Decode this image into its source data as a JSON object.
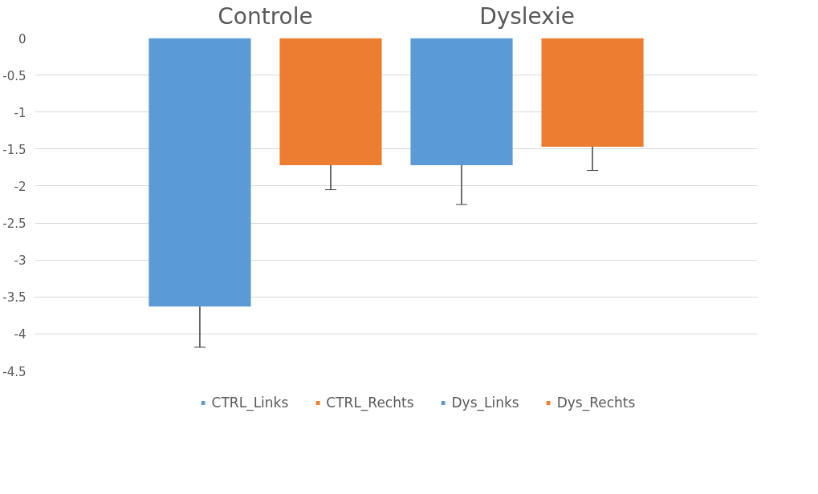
{
  "chart_data": {
    "type": "bar",
    "categories": [
      "Controle",
      "Dyslexie"
    ],
    "series": [
      {
        "name": "CTRL_Links",
        "color": "#5b9bd5",
        "values": [
          -3.63,
          null
        ],
        "errors": [
          0.55,
          null
        ]
      },
      {
        "name": "CTRL_Rechts",
        "color": "#ed7d31",
        "values": [
          -1.72,
          null
        ],
        "errors": [
          0.33,
          null
        ]
      },
      {
        "name": "Dys_Links",
        "color": "#5b9bd5",
        "values": [
          null,
          -1.72
        ],
        "errors": [
          null,
          0.53
        ]
      },
      {
        "name": "Dys_Rechts",
        "color": "#ed7d31",
        "values": [
          null,
          -1.47
        ],
        "errors": [
          null,
          0.32
        ]
      }
    ],
    "ylim": [
      -4.5,
      0
    ],
    "yticks": [
      0,
      -0.5,
      -1,
      -1.5,
      -2,
      -2.5,
      -3,
      -3.5,
      -4,
      -4.5
    ],
    "grid": "y",
    "legend": "bottom"
  }
}
